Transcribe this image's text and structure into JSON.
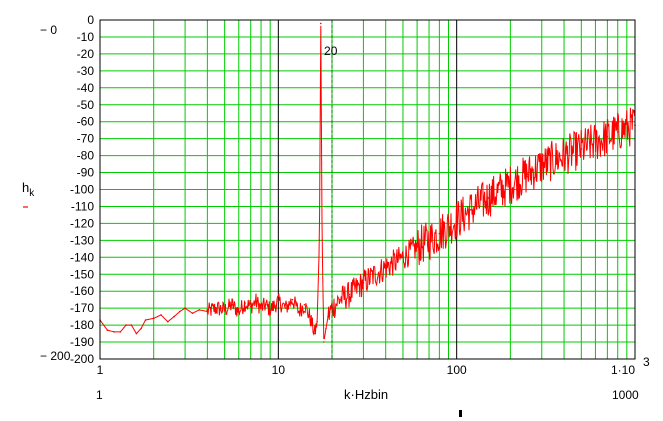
{
  "chart_data": {
    "type": "line",
    "x_scale": "log",
    "xlim": [
      1,
      1000
    ],
    "ylim": [
      -200,
      0
    ],
    "xlabel": "k·Hzbin",
    "ylabel_main": "h",
    "ylabel_sub": "k",
    "grid": true,
    "legend": "none",
    "y_ticks": [
      0,
      -10,
      -20,
      -30,
      -40,
      -50,
      -60,
      -70,
      -80,
      -90,
      -100,
      -110,
      -120,
      -130,
      -140,
      -150,
      -160,
      -170,
      -180,
      -190,
      -200
    ],
    "y_bounds": [
      "− 0",
      "− 200"
    ],
    "x_ticks": [
      {
        "value": 1,
        "label": "1"
      },
      {
        "value": 10,
        "label": "10"
      },
      {
        "value": 100,
        "label": "100"
      },
      {
        "value": 1000,
        "label": "1·10",
        "exp": "3"
      }
    ],
    "x_bounds": [
      "1",
      "1000"
    ],
    "marker": {
      "x": 20,
      "label": "20"
    },
    "series": [
      {
        "color": "#ff0000",
        "points": [
          [
            1,
            -177
          ],
          [
            1.1,
            -183
          ],
          [
            1.2,
            -184
          ],
          [
            1.3,
            -184
          ],
          [
            1.4,
            -180
          ],
          [
            1.5,
            -180
          ],
          [
            1.6,
            -185
          ],
          [
            1.7,
            -182
          ],
          [
            1.8,
            -177
          ],
          [
            2,
            -176
          ],
          [
            2.2,
            -174
          ],
          [
            2.4,
            -178
          ],
          [
            2.6,
            -175
          ],
          [
            2.8,
            -172
          ],
          [
            3,
            -170
          ],
          [
            3.3,
            -173
          ],
          [
            3.6,
            -171
          ],
          [
            4,
            -172
          ],
          [
            4.5,
            -170
          ],
          [
            5,
            -171
          ],
          [
            5.5,
            -168
          ],
          [
            6,
            -172
          ],
          [
            6.5,
            -167
          ],
          [
            7,
            -169
          ],
          [
            7.5,
            -166
          ],
          [
            8,
            -170
          ],
          [
            8.5,
            -168
          ],
          [
            9,
            -171
          ],
          [
            10,
            -166
          ],
          [
            11,
            -170
          ],
          [
            12,
            -165
          ],
          [
            13,
            -172
          ],
          [
            14,
            -168
          ],
          [
            15,
            -175
          ],
          [
            16,
            -185
          ],
          [
            16.5,
            -178
          ],
          [
            17,
            -130
          ],
          [
            17.3,
            -2
          ],
          [
            17.6,
            -130
          ],
          [
            18,
            -190
          ],
          [
            18.5,
            -182
          ],
          [
            19,
            -175
          ],
          [
            20,
            -170
          ],
          [
            22,
            -165
          ],
          [
            25,
            -162
          ],
          [
            30,
            -155
          ],
          [
            35,
            -150
          ],
          [
            40,
            -146
          ],
          [
            50,
            -140
          ],
          [
            60,
            -134
          ],
          [
            70,
            -130
          ],
          [
            80,
            -126
          ],
          [
            100,
            -118
          ],
          [
            120,
            -112
          ],
          [
            150,
            -105
          ],
          [
            200,
            -97
          ],
          [
            250,
            -91
          ],
          [
            300,
            -86
          ],
          [
            400,
            -80
          ],
          [
            500,
            -76
          ],
          [
            600,
            -72
          ],
          [
            700,
            -69
          ],
          [
            800,
            -66
          ],
          [
            1000,
            -62
          ]
        ]
      }
    ]
  }
}
